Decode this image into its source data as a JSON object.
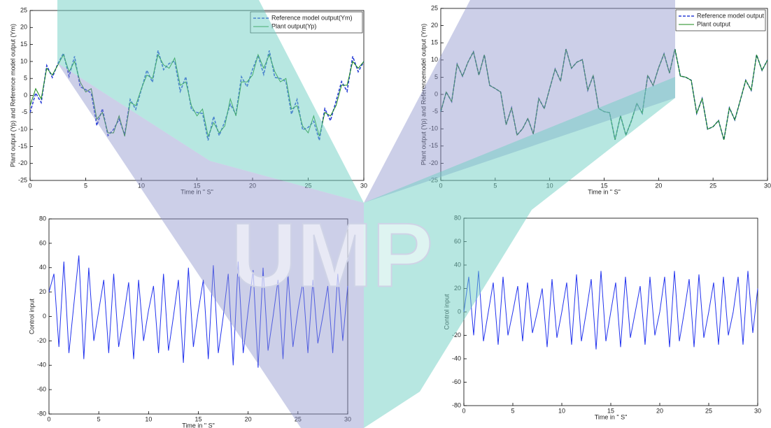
{
  "watermark": "UMP",
  "chart_data": [
    {
      "type": "line",
      "xlabel": "Time in \" S\"",
      "ylabel": "Plant output (Yp) and Reference model output (Ym)",
      "x": [
        0,
        0.5,
        1,
        1.5,
        2,
        2.5,
        3,
        3.5,
        4,
        4.5,
        5,
        5.5,
        6,
        6.5,
        7,
        7.5,
        8,
        8.5,
        9,
        9.5,
        10,
        10.5,
        11,
        11.5,
        12,
        12.5,
        13,
        13.5,
        14,
        14.5,
        15,
        15.5,
        16,
        16.5,
        17,
        17.5,
        18,
        18.5,
        19,
        19.5,
        20,
        20.5,
        21,
        21.5,
        22,
        22.5,
        23,
        23.5,
        24,
        24.5,
        25,
        25.5,
        26,
        26.5,
        27,
        27.5,
        28,
        28.5,
        29,
        29.5,
        30
      ],
      "xlim": [
        0,
        30
      ],
      "xticks": [
        0,
        5,
        10,
        15,
        20,
        25,
        30
      ],
      "ylim": [
        -25,
        25
      ],
      "yticks": [
        -25,
        -20,
        -15,
        -10,
        -5,
        0,
        5,
        10,
        15,
        20,
        25
      ],
      "series": [
        {
          "name": "Reference model output(Ym)",
          "color": "#2a3fd6",
          "dash": true,
          "values": [
            -5,
            0.7,
            -2.1,
            8.8,
            5.3,
            9.4,
            12.4,
            5.6,
            11.5,
            2.6,
            1.7,
            0.7,
            -8.8,
            -3.9,
            -11.8,
            -10,
            -7,
            -11.5,
            -1.2,
            -4.1,
            1.7,
            7.4,
            3.9,
            13.2,
            7.6,
            9.4,
            10.1,
            1.2,
            5.5,
            -4.1,
            -5,
            -5.3,
            -13.2,
            -6.2,
            -11.8,
            -7.7,
            -2.6,
            -5.5,
            5.5,
            2.6,
            7.7,
            11.8,
            6.2,
            13.2,
            5.3,
            5,
            4.1,
            -5.5,
            -1.2,
            -10.1,
            -9.4,
            -7.6,
            -13.2,
            -3.9,
            -7.4,
            -1.7,
            4.1,
            1.2,
            11.5,
            7,
            10
          ]
        },
        {
          "name": "Plant output(Yp)",
          "color": "#1a8a1a",
          "dash": false,
          "values": [
            -3,
            2,
            -1,
            8,
            6,
            9,
            12,
            7,
            10,
            4,
            1,
            2,
            -7,
            -5,
            -11,
            -11,
            -6,
            -12,
            -2,
            -3,
            2,
            6,
            5,
            12,
            9,
            8,
            11,
            3,
            4,
            -3,
            -6,
            -4,
            -12,
            -8,
            -11,
            -9,
            -1,
            -6,
            4,
            4,
            6,
            12,
            8,
            12,
            7,
            4,
            5,
            -4,
            -3,
            -9,
            -11,
            -6,
            -12,
            -5,
            -6,
            -3,
            3,
            3,
            10,
            8,
            10
          ]
        }
      ]
    },
    {
      "type": "line",
      "xlabel": "Time in \" S\"",
      "ylabel": "Plant output (Yp) and Referencemodel output (Ym)",
      "x": [
        0,
        0.5,
        1,
        1.5,
        2,
        2.5,
        3,
        3.5,
        4,
        4.5,
        5,
        5.5,
        6,
        6.5,
        7,
        7.5,
        8,
        8.5,
        9,
        9.5,
        10,
        10.5,
        11,
        11.5,
        12,
        12.5,
        13,
        13.5,
        14,
        14.5,
        15,
        15.5,
        16,
        16.5,
        17,
        17.5,
        18,
        18.5,
        19,
        19.5,
        20,
        20.5,
        21,
        21.5,
        22,
        22.5,
        23,
        23.5,
        24,
        24.5,
        25,
        25.5,
        26,
        26.5,
        27,
        27.5,
        28,
        28.5,
        29,
        29.5,
        30
      ],
      "xlim": [
        0,
        30
      ],
      "xticks": [
        0,
        5,
        10,
        15,
        20,
        25,
        30
      ],
      "ylim": [
        -25,
        25
      ],
      "yticks": [
        -25,
        -20,
        -15,
        -10,
        -5,
        0,
        5,
        10,
        15,
        20,
        25
      ],
      "series": [
        {
          "name": "Reference model output",
          "color": "#2a3fd6",
          "dash": true,
          "values": [
            -5,
            0.7,
            -2.1,
            8.8,
            5.3,
            9.4,
            12.4,
            5.6,
            11.5,
            2.6,
            1.7,
            0.7,
            -8.8,
            -3.9,
            -11.8,
            -10,
            -7,
            -11.5,
            -1.2,
            -4.1,
            1.7,
            7.4,
            3.9,
            13.2,
            7.6,
            9.4,
            10.1,
            1.2,
            5.5,
            -4.1,
            -5,
            -5.3,
            -13.2,
            -6.2,
            -11.8,
            -7.7,
            -2.6,
            -5.5,
            5.5,
            2.6,
            7.7,
            11.8,
            6.2,
            13.2,
            5.3,
            5,
            4.1,
            -5.5,
            -1.2,
            -10.1,
            -9.4,
            -7.6,
            -13.2,
            -3.9,
            -7.4,
            -1.7,
            4.1,
            1.2,
            11.5,
            7,
            10
          ]
        },
        {
          "name": "Plant output",
          "color": "#1a8a1a",
          "dash": false,
          "values": [
            -5,
            0.7,
            -2.1,
            8.8,
            5.3,
            9.4,
            12.4,
            5.6,
            11.5,
            2.6,
            1.7,
            0.7,
            -8.8,
            -3.9,
            -11.8,
            -10,
            -7,
            -11.5,
            -1.2,
            -4.1,
            1.7,
            7.4,
            3.9,
            13.2,
            7.6,
            9.4,
            10.1,
            1.2,
            5.5,
            -4.1,
            -5,
            -5.3,
            -13.2,
            -6.2,
            -11.8,
            -7.7,
            -2.6,
            -5.5,
            5.5,
            2.6,
            7.7,
            11.8,
            6.2,
            13.2,
            5.3,
            5,
            4.1,
            -5.5,
            -1.2,
            -10.1,
            -9.4,
            -7.6,
            -13.2,
            -3.9,
            -7.4,
            -1.7,
            4.1,
            1.2,
            11.5,
            7,
            10
          ]
        }
      ]
    },
    {
      "type": "line",
      "xlabel": "Time in \" S\"",
      "ylabel": "Control input",
      "x": [
        0,
        0.5,
        1,
        1.5,
        2,
        2.5,
        3,
        3.5,
        4,
        4.5,
        5,
        5.5,
        6,
        6.5,
        7,
        7.5,
        8,
        8.5,
        9,
        9.5,
        10,
        10.5,
        11,
        11.5,
        12,
        12.5,
        13,
        13.5,
        14,
        14.5,
        15,
        15.5,
        16,
        16.5,
        17,
        17.5,
        18,
        18.5,
        19,
        19.5,
        20,
        20.5,
        21,
        21.5,
        22,
        22.5,
        23,
        23.5,
        24,
        24.5,
        25,
        25.5,
        26,
        26.5,
        27,
        27.5,
        28,
        28.5,
        29,
        29.5,
        30
      ],
      "xlim": [
        0,
        30
      ],
      "xticks": [
        0,
        5,
        10,
        15,
        20,
        25,
        30
      ],
      "ylim": [
        -80,
        80
      ],
      "yticks": [
        -80,
        -60,
        -40,
        -20,
        0,
        20,
        40,
        60,
        80
      ],
      "series": [
        {
          "color": "#2233ee",
          "dash": false,
          "values": [
            20,
            35,
            -25,
            45,
            -30,
            10,
            50,
            -35,
            40,
            -20,
            5,
            30,
            -30,
            35,
            -25,
            0,
            28,
            -35,
            30,
            -20,
            5,
            25,
            -30,
            35,
            -28,
            0,
            30,
            -38,
            40,
            -25,
            5,
            30,
            -35,
            42,
            -30,
            0,
            35,
            -40,
            45,
            -30,
            5,
            38,
            -42,
            40,
            -28,
            0,
            30,
            -35,
            35,
            -25,
            5,
            28,
            -30,
            30,
            -22,
            0,
            25,
            -30,
            35,
            -20,
            25
          ]
        }
      ]
    },
    {
      "type": "line",
      "xlabel": "Time in \" S\"",
      "ylabel": "Control input",
      "x": [
        0,
        0.5,
        1,
        1.5,
        2,
        2.5,
        3,
        3.5,
        4,
        4.5,
        5,
        5.5,
        6,
        6.5,
        7,
        7.5,
        8,
        8.5,
        9,
        9.5,
        10,
        10.5,
        11,
        11.5,
        12,
        12.5,
        13,
        13.5,
        14,
        14.5,
        15,
        15.5,
        16,
        16.5,
        17,
        17.5,
        18,
        18.5,
        19,
        19.5,
        20,
        20.5,
        21,
        21.5,
        22,
        22.5,
        23,
        23.5,
        24,
        24.5,
        25,
        25.5,
        26,
        26.5,
        27,
        27.5,
        28,
        28.5,
        29,
        29.5,
        30
      ],
      "xlim": [
        0,
        30
      ],
      "xticks": [
        0,
        5,
        10,
        15,
        20,
        25,
        30
      ],
      "ylim": [
        -80,
        80
      ],
      "yticks": [
        -80,
        -60,
        -40,
        -20,
        0,
        20,
        40,
        60,
        80
      ],
      "series": [
        {
          "color": "#2233ee",
          "dash": false,
          "values": [
            0,
            30,
            -20,
            35,
            -25,
            0,
            25,
            -28,
            30,
            -20,
            0,
            22,
            -25,
            25,
            -18,
            0,
            20,
            -30,
            28,
            -22,
            0,
            25,
            -28,
            32,
            -25,
            0,
            28,
            -32,
            35,
            -25,
            0,
            25,
            -30,
            30,
            -22,
            0,
            22,
            -28,
            30,
            -20,
            0,
            30,
            -30,
            35,
            -25,
            0,
            28,
            -30,
            32,
            -22,
            0,
            25,
            -28,
            30,
            -20,
            0,
            30,
            -28,
            35,
            -18,
            20
          ]
        }
      ]
    }
  ]
}
